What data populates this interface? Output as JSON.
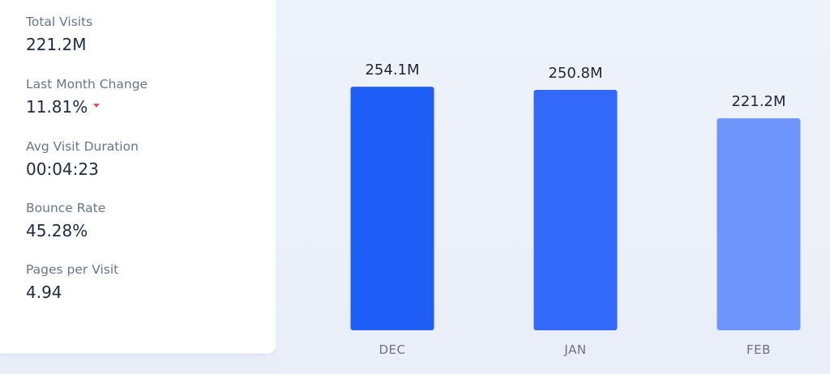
{
  "metrics": [
    {
      "label": "Total Visits",
      "value": "221.2M"
    },
    {
      "label": "Last Month Change",
      "value": "11.81%",
      "trend": "down",
      "trend_icon": "caret-down-icon",
      "trend_color": "#e2545a"
    },
    {
      "label": "Avg Visit Duration",
      "value": "00:04:23"
    },
    {
      "label": "Bounce Rate",
      "value": "45.28%"
    },
    {
      "label": "Pages per Visit",
      "value": "4.94"
    }
  ],
  "chart_data": {
    "type": "bar",
    "categories": [
      "DEC",
      "JAN",
      "FEB"
    ],
    "values": [
      254.1,
      250.8,
      221.2
    ],
    "value_labels": [
      "254.1M",
      "250.8M",
      "221.2M"
    ],
    "bar_colors": [
      "#1f5ef7",
      "#3369fb",
      "#6d95fb"
    ],
    "ylim": [
      0,
      300
    ],
    "grid": false
  }
}
